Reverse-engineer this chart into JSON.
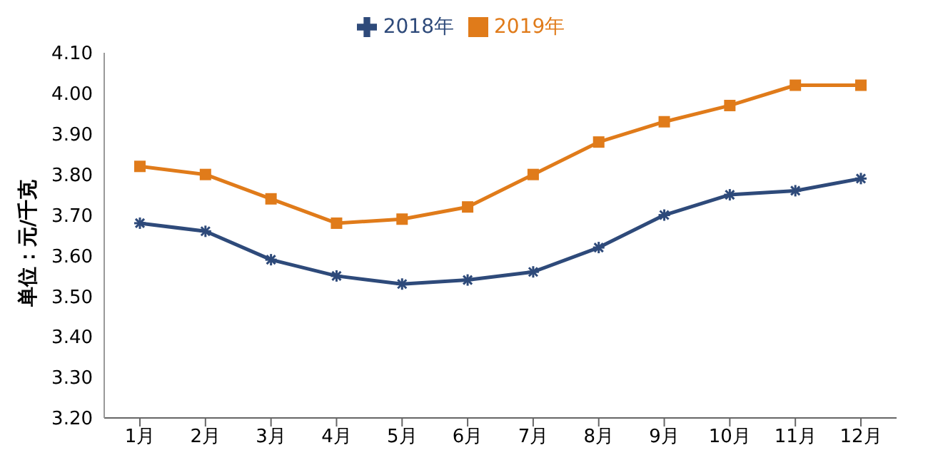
{
  "chart_data": {
    "type": "line",
    "ylabel": "单位：元/千克",
    "categories": [
      "1月",
      "2月",
      "3月",
      "4月",
      "5月",
      "6月",
      "7月",
      "8月",
      "9月",
      "10月",
      "11月",
      "12月"
    ],
    "series": [
      {
        "name": "2018年",
        "color": "#2e4a7a",
        "marker": "cross",
        "values": [
          3.68,
          3.66,
          3.59,
          3.55,
          3.53,
          3.54,
          3.56,
          3.62,
          3.7,
          3.75,
          3.76,
          3.79
        ]
      },
      {
        "name": "2019年",
        "color": "#e07b1a",
        "marker": "square",
        "values": [
          3.82,
          3.8,
          3.74,
          3.68,
          3.69,
          3.72,
          3.8,
          3.88,
          3.93,
          3.97,
          4.02,
          4.02
        ]
      }
    ],
    "ylim": [
      3.2,
      4.1
    ],
    "yticks": [
      {
        "value": 3.2,
        "label": "3.20"
      },
      {
        "value": 3.3,
        "label": "3.30"
      },
      {
        "value": 3.4,
        "label": "3.40"
      },
      {
        "value": 3.5,
        "label": "3.50"
      },
      {
        "value": 3.6,
        "label": "3.60"
      },
      {
        "value": 3.7,
        "label": "3.70"
      },
      {
        "value": 3.8,
        "label": "3.80"
      },
      {
        "value": 3.9,
        "label": "3.90"
      },
      {
        "value": 4.0,
        "label": "4.00"
      },
      {
        "value": 4.1,
        "label": "4.10"
      }
    ],
    "grid": false,
    "legend": "top",
    "line_style": "solid"
  }
}
